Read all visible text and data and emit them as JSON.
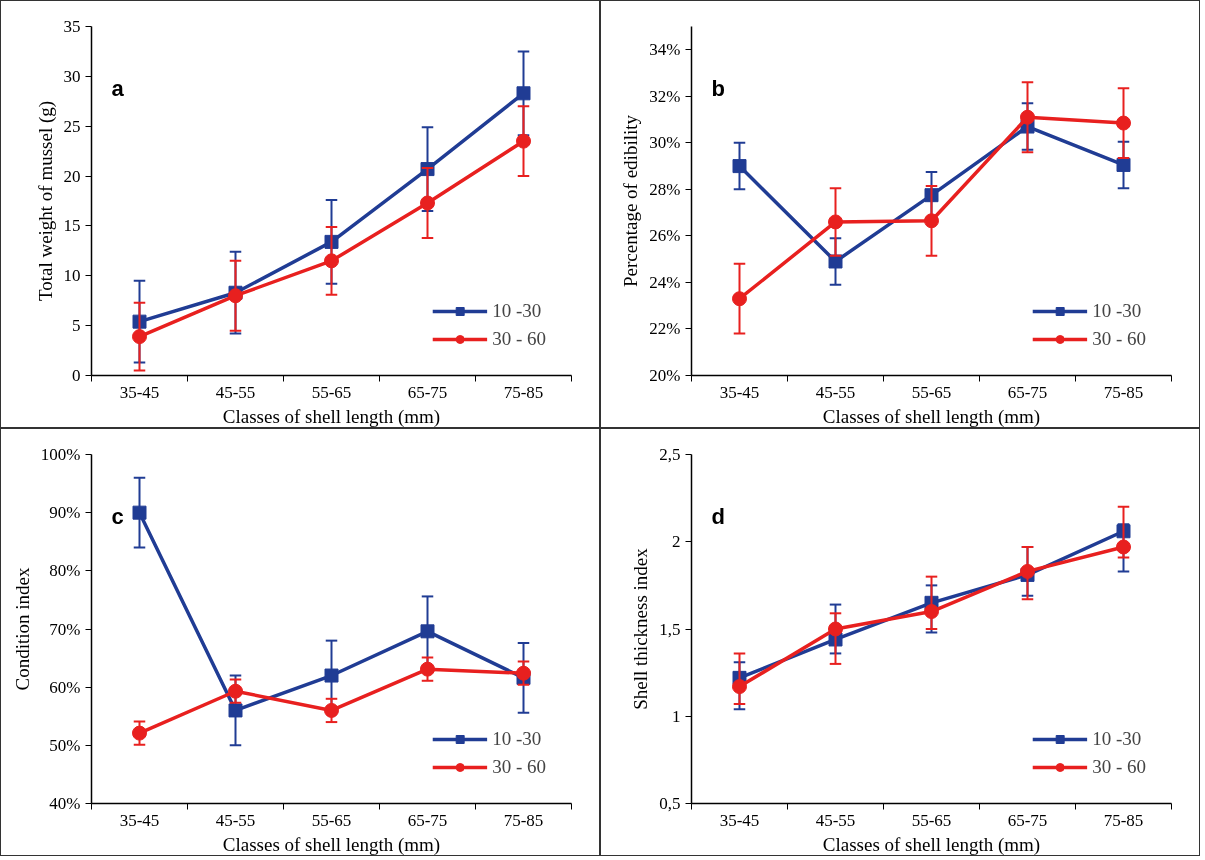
{
  "chart_data": [
    {
      "type": "line",
      "annotations": [
        "a"
      ],
      "xlabel": "Classes of shell length (mm)",
      "ylabel": "Total weight of mussel (g)",
      "categories": [
        "35-45",
        "45-55",
        "55-65",
        "65-75",
        "75-85"
      ],
      "ylim": [
        0,
        35
      ],
      "yticks": [
        0,
        5,
        10,
        15,
        20,
        25,
        30,
        35
      ],
      "grid": false,
      "legend": "bottom right",
      "series": [
        {
          "name": "10 -30",
          "color": "#203c94",
          "marker": "square",
          "values": [
            5.4,
            8.3,
            13.4,
            20.7,
            28.3
          ],
          "errors": [
            4.1,
            4.1,
            4.2,
            4.2,
            4.2
          ]
        },
        {
          "name": "30 - 60",
          "color": "#e8201f",
          "marker": "circle",
          "values": [
            3.9,
            8.0,
            11.5,
            17.3,
            23.5
          ],
          "errors": [
            3.4,
            3.5,
            3.4,
            3.5,
            3.5
          ]
        }
      ]
    },
    {
      "type": "line",
      "annotations": [
        "b"
      ],
      "xlabel": "Classes of shell length (mm)",
      "ylabel": "Percentage of edibility",
      "categories": [
        "35-45",
        "45-55",
        "55-65",
        "65-75",
        "75-85"
      ],
      "ylim": [
        20,
        35
      ],
      "yticks": [
        {
          "value": 20,
          "label": "20%"
        },
        {
          "value": 22,
          "label": "22%"
        },
        {
          "value": 24,
          "label": "24%"
        },
        {
          "value": 26,
          "label": "26%"
        },
        {
          "value": 28,
          "label": "28%"
        },
        {
          "value": 30,
          "label": "30%"
        },
        {
          "value": 32,
          "label": "32%"
        },
        {
          "value": 34,
          "label": "34%"
        }
      ],
      "grid": false,
      "legend": "bottom right",
      "series": [
        {
          "name": "10 -30",
          "color": "#203c94",
          "marker": "square",
          "values": [
            29.0,
            24.9,
            27.75,
            30.7,
            29.05
          ],
          "errors": [
            1.0,
            1.0,
            1.0,
            1.0,
            1.0
          ]
        },
        {
          "name": "30 - 60",
          "color": "#e8201f",
          "marker": "circle",
          "values": [
            23.3,
            26.6,
            26.65,
            31.1,
            30.85
          ],
          "errors": [
            1.5,
            1.45,
            1.5,
            1.5,
            1.5
          ]
        }
      ]
    },
    {
      "type": "line",
      "annotations": [
        "c"
      ],
      "xlabel": "Classes of shell length (mm)",
      "ylabel": "Condition index",
      "categories": [
        "35-45",
        "45-55",
        "55-65",
        "65-75",
        "75-85"
      ],
      "ylim": [
        40,
        100
      ],
      "yticks": [
        {
          "value": 40,
          "label": "40%"
        },
        {
          "value": 50,
          "label": "50%"
        },
        {
          "value": 60,
          "label": "60%"
        },
        {
          "value": 70,
          "label": "70%"
        },
        {
          "value": 80,
          "label": "80%"
        },
        {
          "value": 90,
          "label": "90%"
        },
        {
          "value": 100,
          "label": "100%"
        }
      ],
      "grid": false,
      "legend": "bottom right",
      "series": [
        {
          "name": "10 -30",
          "color": "#203c94",
          "marker": "square",
          "values": [
            90.0,
            56.0,
            62.0,
            69.6,
            61.6
          ],
          "errors": [
            6,
            6,
            6,
            6,
            6
          ]
        },
        {
          "name": "30 - 60",
          "color": "#e8201f",
          "marker": "circle",
          "values": [
            52.1,
            59.3,
            56.0,
            63.1,
            62.4
          ],
          "errors": [
            2,
            2,
            2,
            2,
            2
          ]
        }
      ]
    },
    {
      "type": "line",
      "annotations": [
        "d"
      ],
      "xlabel": "Classes of shell length (mm)",
      "ylabel": "Shell thickness index",
      "categories": [
        "35-45",
        "45-55",
        "55-65",
        "65-75",
        "75-85"
      ],
      "ylim": [
        0.5,
        2.5
      ],
      "yticks": [
        {
          "value": 0.5,
          "label": "0,5"
        },
        1,
        {
          "value": 1.5,
          "label": "1,5"
        },
        2,
        {
          "value": 2.5,
          "label": "2,5"
        }
      ],
      "grid": false,
      "legend": "bottom right",
      "series": [
        {
          "name": "10 -30",
          "color": "#203c94",
          "marker": "square",
          "values": [
            1.22,
            1.44,
            1.65,
            1.81,
            2.06
          ],
          "errors": [
            [
              1.04,
              1.31
            ],
            [
              1.36,
              1.64
            ],
            [
              1.48,
              1.75
            ],
            [
              1.69,
              1.97
            ],
            [
              1.83,
              2.1
            ]
          ]
        },
        {
          "name": "30 - 60",
          "color": "#e8201f",
          "marker": "circle",
          "values": [
            1.17,
            1.5,
            1.6,
            1.83,
            1.97
          ],
          "errors": [
            [
              1.07,
              1.36
            ],
            [
              1.3,
              1.59
            ],
            [
              1.5,
              1.8
            ],
            [
              1.67,
              1.97
            ],
            [
              1.91,
              2.2
            ]
          ]
        }
      ]
    }
  ]
}
